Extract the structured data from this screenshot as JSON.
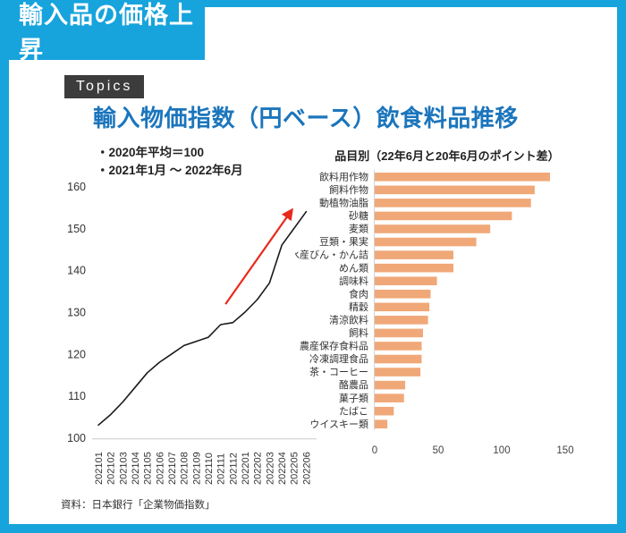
{
  "header": {
    "tab_title": "輸入品の価格上昇",
    "topics_label": "Topics"
  },
  "main": {
    "title": "輸入物価指数（円ベース）飲食料品推移",
    "notes": [
      "・2020年平均＝100",
      "・2021年1月 ～ 2022年6月"
    ],
    "source": "資料：日本銀行「企業物価指数」"
  },
  "colors": {
    "accent_cyan": "#17A3DC",
    "title_blue": "#1B75BC",
    "bar_orange": "#F0A878",
    "badge_dark": "#3C3C3C",
    "line_black": "#1a1a1a",
    "arrow_red": "#E8291C",
    "axis_gray": "#c9c9c9",
    "tick_text": "#333333"
  },
  "chart_data": [
    {
      "type": "line",
      "title": "輸入物価指数（円ベース）飲食料品推移",
      "x": [
        "202101",
        "202102",
        "202103",
        "202104",
        "202105",
        "202106",
        "202107",
        "202108",
        "202109",
        "202110",
        "202111",
        "202112",
        "202201",
        "202202",
        "202203",
        "202204",
        "202205",
        "202206"
      ],
      "values": [
        103,
        105.5,
        108.5,
        112,
        115.5,
        118,
        120,
        122,
        123,
        124,
        127,
        127.5,
        130,
        133,
        137,
        146,
        150,
        154
      ],
      "xlabel": "",
      "ylabel": "",
      "ylim": [
        100,
        160
      ],
      "yticks": [
        100,
        110,
        120,
        130,
        140,
        150,
        160
      ],
      "grid": false,
      "legend": false,
      "annotation": {
        "kind": "trend-arrow",
        "from": [
          10.4,
          131.9
        ],
        "to": [
          15.85,
          154.5
        ]
      }
    },
    {
      "type": "bar",
      "orientation": "horizontal",
      "title": "品目別（22年6月と20年6月のポイント差）",
      "categories": [
        "飲料用作物",
        "飼料作物",
        "動植物油脂",
        "砂糖",
        "麦類",
        "豆類・果実",
        "水産びん・かん詰",
        "めん類",
        "調味料",
        "食肉",
        "精穀",
        "清涼飲料",
        "飼料",
        "農産保存食料品",
        "冷凍調理食品",
        "茶・コーヒー",
        "酪農品",
        "菓子類",
        "たばこ",
        "ウイスキー類"
      ],
      "values": [
        138,
        126,
        123,
        108,
        91,
        80,
        62,
        62,
        49,
        44,
        43,
        42,
        38,
        37,
        37,
        36,
        24,
        23,
        15,
        10
      ],
      "xlim": [
        0,
        170
      ],
      "xticks": [
        0,
        50,
        100,
        150
      ],
      "grid": false,
      "legend": false
    }
  ]
}
